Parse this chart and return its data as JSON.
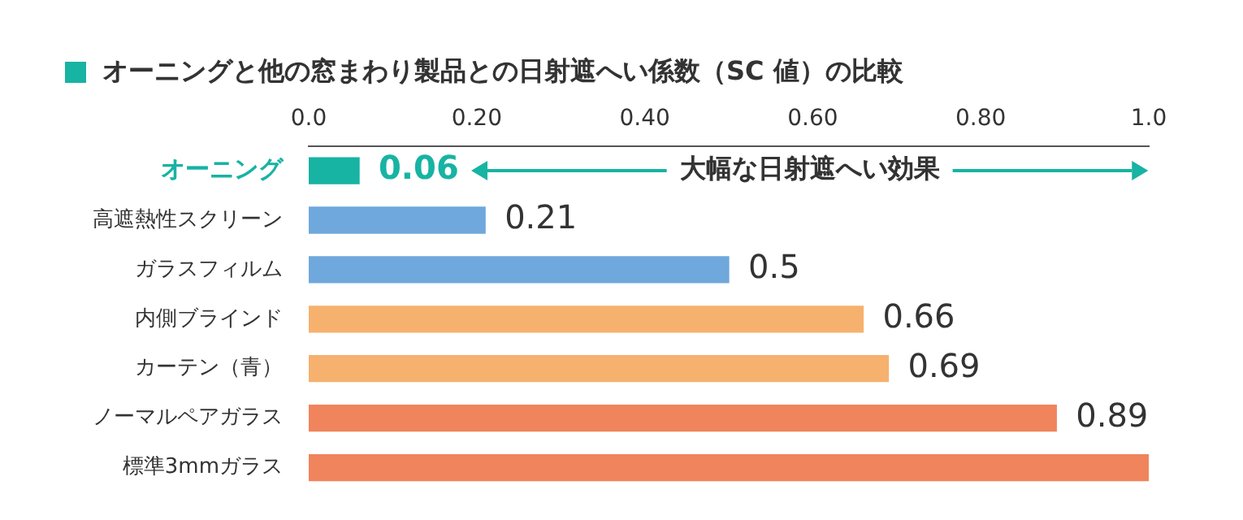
{
  "chart_data": {
    "type": "bar",
    "orientation": "horizontal",
    "title": "オーニングと他の窓まわり製品との日射遮へい係数（SC 値）の比較",
    "categories": [
      "オーニング",
      "高遮熱性スクリーン",
      "ガラスフィルム",
      "内側ブラインド",
      "カーテン（青）",
      "ノーマルペアガラス",
      "標準3mmガラス"
    ],
    "values": [
      0.06,
      0.21,
      0.5,
      0.66,
      0.69,
      0.89,
      1.0
    ],
    "colors": [
      "#17b3a3",
      "#6fa8dc",
      "#6fa8dc",
      "#f6b16e",
      "#f6b16e",
      "#f0845c",
      "#f0845c"
    ],
    "value_labels": [
      "0.06",
      "0.21",
      "0.5",
      "0.66",
      "0.69",
      "0.89",
      null
    ],
    "xlim": [
      0,
      1.0
    ],
    "xticks": [
      {
        "value": 0,
        "label": "0.0"
      },
      {
        "value": 0.2,
        "label": "0.20"
      },
      {
        "value": 0.4,
        "label": "0.40"
      },
      {
        "value": 0.6,
        "label": "0.60"
      },
      {
        "value": 0.8,
        "label": "0.80"
      },
      {
        "value": 1.0,
        "label": "1.0"
      }
    ],
    "annotations": [
      "大幅な日射遮へい効果"
    ],
    "grid": false,
    "legend": false
  }
}
